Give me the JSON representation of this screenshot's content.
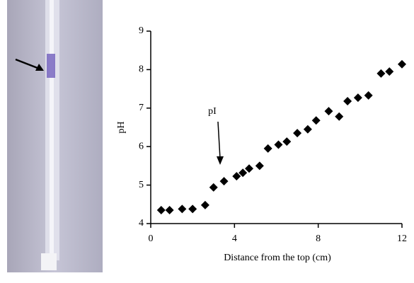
{
  "chart_data": {
    "type": "scatter",
    "x_label": "Distance from the top (cm)",
    "y_label": "pH",
    "annotation": "pI",
    "color": "#000000",
    "x": [
      0.5,
      0.9,
      1.5,
      2.0,
      2.6,
      3.0,
      3.5,
      4.1,
      4.4,
      4.7,
      5.2,
      5.6,
      6.1,
      6.5,
      7.0,
      7.5,
      7.9,
      8.5,
      9.0,
      9.4,
      9.9,
      10.4,
      11.0,
      11.4,
      12.0
    ],
    "values": [
      4.35,
      4.35,
      4.38,
      4.38,
      4.48,
      4.94,
      5.1,
      5.23,
      5.32,
      5.43,
      5.5,
      5.95,
      6.05,
      6.13,
      6.35,
      6.45,
      6.68,
      6.92,
      6.78,
      7.18,
      7.27,
      7.33,
      7.9,
      7.95,
      8.14
    ],
    "xlim": [
      0,
      12
    ],
    "xticks": [
      0,
      4,
      8,
      12
    ],
    "ylim": [
      4,
      9
    ],
    "yticks": [
      4,
      5,
      6,
      7,
      8,
      9
    ]
  }
}
